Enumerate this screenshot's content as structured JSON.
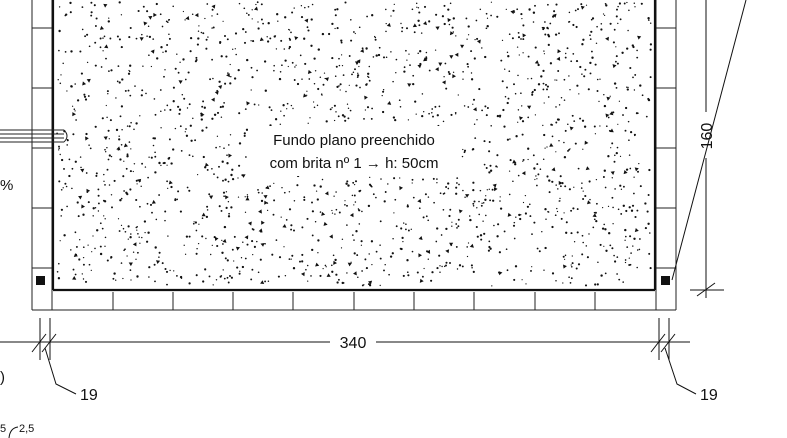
{
  "drawing": {
    "fill_label_line1": "Fundo plano preenchido",
    "fill_label_line2": "com brita nº 1 → h: 50cm",
    "width_dimension": "340",
    "height_dimension": "160",
    "left_wall_dimension": "19",
    "right_wall_dimension": "19",
    "partial_left_text_1": "%",
    "partial_left_text_2": ")",
    "partial_bottom_text": "5",
    "partial_bottom_superscript": "2,5"
  },
  "colors": {
    "line": "#111111",
    "background": "#ffffff"
  }
}
